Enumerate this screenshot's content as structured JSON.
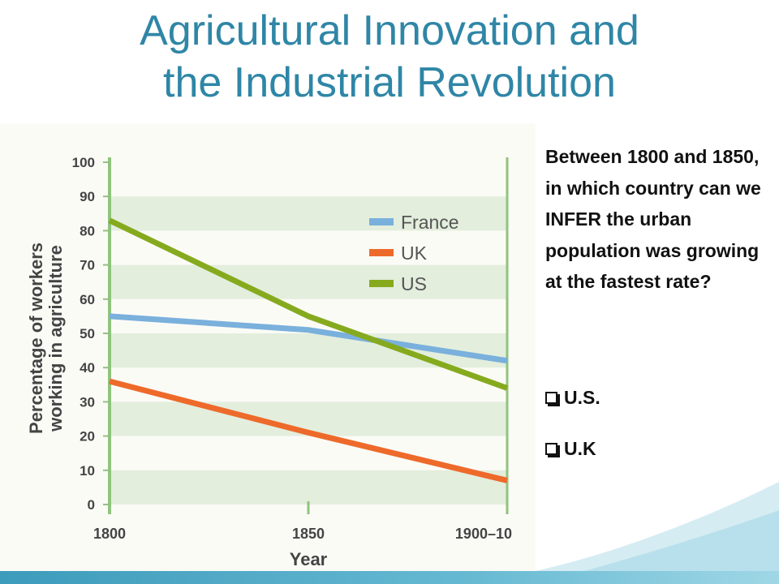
{
  "slide": {
    "title_line1": "Agricultural Innovation and",
    "title_line2": "the Industrial Revolution",
    "question": "Between 1800 and 1850, in which country can we INFER the urban population was growing at the fastest rate?",
    "options": [
      "U.S.",
      "U.K"
    ]
  },
  "colors": {
    "title": "#2f86a6",
    "france": "#7ab0dc",
    "uk": "#ee6a2a",
    "us": "#86aa1e",
    "grid_band": "#e3eedd",
    "axis": "#8fc47e"
  },
  "chart_data": {
    "type": "line",
    "x": [
      "1800",
      "1850",
      "1900–10"
    ],
    "series": [
      {
        "name": "France",
        "values": [
          55,
          51,
          42
        ]
      },
      {
        "name": "UK",
        "values": [
          36,
          21,
          7
        ]
      },
      {
        "name": "US",
        "values": [
          83,
          55,
          34
        ]
      }
    ],
    "xlabel": "Year",
    "ylabel": "Percentage of workers working in agriculture",
    "ylim": [
      0,
      100
    ],
    "yticks": [
      0,
      10,
      20,
      30,
      40,
      50,
      60,
      70,
      80,
      90,
      100
    ],
    "legend": "top-right",
    "grid": true
  }
}
